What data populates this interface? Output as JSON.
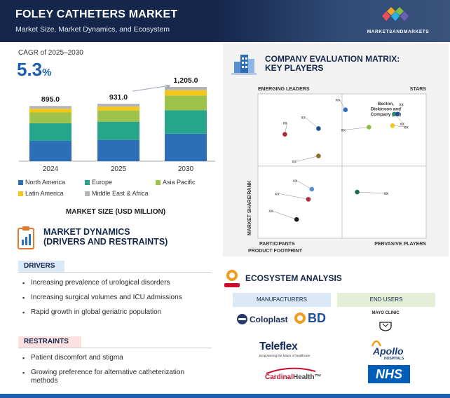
{
  "header": {
    "title": "FOLEY CATHETERS MARKET",
    "subtitle": "Market Size, Market Dynamics, and Ecosystem",
    "logo_text": "MARKETSANDMARKETS",
    "logo_colors": [
      "#e94e5b",
      "#f6a623",
      "#2ab2e4",
      "#7fc241",
      "#6d5fb3"
    ]
  },
  "cagr": {
    "label": "CAGR of 2025–2030",
    "value": "5.3",
    "unit": "%"
  },
  "chart_data": {
    "type": "bar",
    "stacked": true,
    "categories": [
      "2024",
      "2025",
      "2030"
    ],
    "totals": [
      895.0,
      931.0,
      1205.0
    ],
    "total_labels": [
      "895.0",
      "931.0",
      "1,205.0"
    ],
    "series": [
      {
        "name": "North America",
        "color": "#2d6fb7",
        "values": [
          330,
          345,
          445
        ]
      },
      {
        "name": "Europe",
        "color": "#26a58a",
        "values": [
          285,
          295,
          380
        ]
      },
      {
        "name": "Asia Pacific",
        "color": "#9dc34a",
        "values": [
          175,
          182,
          240
        ]
      },
      {
        "name": "Latin America",
        "color": "#f5c518",
        "values": [
          60,
          62,
          85
        ]
      },
      {
        "name": "Middle East & Africa",
        "color": "#b5b5b5",
        "values": [
          45,
          47,
          55
        ]
      }
    ],
    "ylim": [
      0,
      1250
    ],
    "xlabel": "MARKET SIZE (USD MILLION)",
    "ylabel": "",
    "grid": false,
    "legend": "bottom"
  },
  "market_size_label": "MARKET SIZE (USD MILLION)",
  "market_dynamics": {
    "title_line1": "MARKET DYNAMICS",
    "title_line2": "(DRIVERS AND RESTRAINTS)",
    "drivers_label": "DRIVERS",
    "drivers": [
      "Increasing prevalence of urological disorders",
      "Increasing surgical volumes and ICU admissions",
      "Rapid growth in global geriatric population"
    ],
    "restraints_label": "RESTRAINTS",
    "restraints": [
      "Patient discomfort and stigma",
      "Growing preference for alternative catheterization methods"
    ]
  },
  "matrix": {
    "title_line1": "COMPANY EVALUATION MATRIX:",
    "title_line2": "KEY PLAYERS",
    "quadrants": {
      "top_left": "EMERGING LEADERS",
      "top_right": "STARS",
      "bottom_left": "PARTICIPANTS",
      "bottom_right": "PERVASIVE PLAYERS"
    },
    "y_axis": "MARKET SHARE/RANK",
    "x_axis": "PRODUCT FOOTPRINT",
    "highlight_label_lines": [
      "Becton,",
      "Dickinson and",
      "Company (US)"
    ],
    "point_label": "xx",
    "points": [
      {
        "x": 0.16,
        "y": 0.72,
        "color": "#b02a37"
      },
      {
        "x": 0.36,
        "y": 0.76,
        "color": "#1e4f8f"
      },
      {
        "x": 0.36,
        "y": 0.57,
        "color": "#8b6f2a"
      },
      {
        "x": 0.52,
        "y": 0.89,
        "color": "#2d6fb7"
      },
      {
        "x": 0.66,
        "y": 0.77,
        "color": "#8fbf3e"
      },
      {
        "x": 0.8,
        "y": 0.78,
        "color": "#f5c518"
      },
      {
        "x": 0.81,
        "y": 0.86,
        "color": "#2a8c6e"
      },
      {
        "x": 0.83,
        "y": 0.86,
        "color": "#1e4f8f"
      },
      {
        "x": 0.32,
        "y": 0.34,
        "color": "#5b8fd0"
      },
      {
        "x": 0.3,
        "y": 0.27,
        "color": "#b02a37"
      },
      {
        "x": 0.23,
        "y": 0.13,
        "color": "#1a1a1a"
      },
      {
        "x": 0.59,
        "y": 0.32,
        "color": "#1d6b56"
      }
    ]
  },
  "ecosystem": {
    "title": "ECOSYSTEM ANALYSIS",
    "manufacturers_label": "MANUFACTURERS",
    "end_users_label": "END USERS",
    "manufacturers": {
      "coloplast": "Coloplast",
      "bd": "BD",
      "teleflex": "Teleflex",
      "teleflex_tagline": "Empowering the future of healthcare",
      "cardinal_part1": "Cardinal",
      "cardinal_part2": "Health",
      "cardinal_tm": "™"
    },
    "end_users": {
      "mayo": "MAYO CLINIC",
      "apollo": "Apollo",
      "apollo_sub": "HOSPITALS",
      "nhs": "NHS"
    }
  }
}
